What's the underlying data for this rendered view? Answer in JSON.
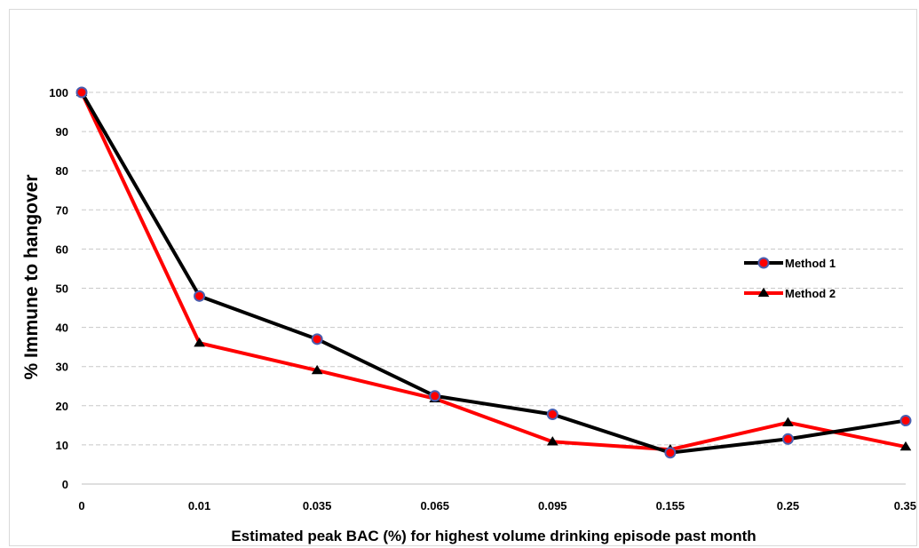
{
  "chart_data": {
    "type": "line",
    "title": "",
    "xlabel": "Estimated peak BAC (%) for highest volume drinking episode past month",
    "ylabel": "% Immune to hangover",
    "categories": [
      "0",
      "0.01",
      "0.035",
      "0.065",
      "0.095",
      "0.155",
      "0.25",
      "0.35"
    ],
    "ylim": [
      0,
      100
    ],
    "yticks": [
      0,
      10,
      20,
      30,
      40,
      50,
      60,
      70,
      80,
      90,
      100
    ],
    "grid": true,
    "legend_position": "right",
    "series": [
      {
        "name": "Method 1",
        "values": [
          100,
          48,
          37,
          22.5,
          17.8,
          8,
          11.5,
          16.2
        ],
        "line_color": "#000000",
        "marker": "circle",
        "marker_fill": "#ff0000",
        "marker_stroke": "#4a5fb0"
      },
      {
        "name": "Method 2",
        "values": [
          100,
          36,
          29,
          21.8,
          10.8,
          8.8,
          15.7,
          9.5
        ],
        "line_color": "#ff0000",
        "marker": "triangle",
        "marker_fill": "#000000"
      }
    ]
  }
}
